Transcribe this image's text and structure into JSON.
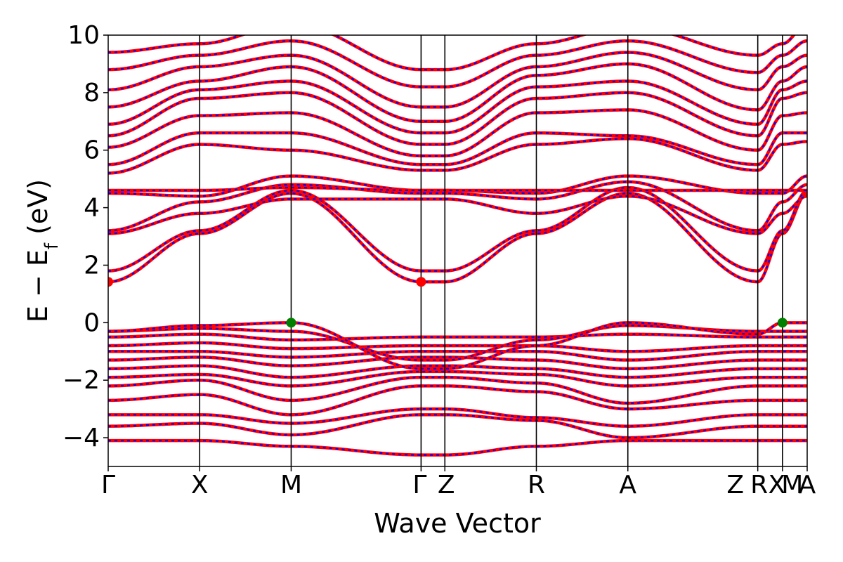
{
  "chart_data": {
    "type": "line",
    "title": "",
    "xlabel": "Wave Vector",
    "ylabel": "E − E_f (eV)",
    "ylabel_parts": {
      "main": "E − E",
      "sub": "f",
      "unit": " (eV)"
    },
    "ylim": [
      -5,
      10
    ],
    "yticks": [
      10,
      8,
      6,
      4,
      2,
      0,
      -2,
      -4
    ],
    "ytick_labels": [
      "10",
      "8",
      "6",
      "4",
      "2",
      "0",
      "−2",
      "−4"
    ],
    "grid": false,
    "x_positions": [
      0,
      1,
      2,
      3.42,
      3.68,
      4.68,
      5.68,
      7.1,
      7.37,
      7.64
    ],
    "kpoints": [
      {
        "label": "Γ",
        "x": 0
      },
      {
        "label": "X",
        "x": 1
      },
      {
        "label": "M",
        "x": 2
      },
      {
        "label": "Γ|Z",
        "x": 3.42
      },
      {
        "label": "Z",
        "x": 3.68
      },
      {
        "label": "R",
        "x": 4.68
      },
      {
        "label": "A",
        "x": 5.68
      },
      {
        "label": "Z|R",
        "x": 7.1
      },
      {
        "label": "X|M",
        "x": 7.37
      },
      {
        "label": "A",
        "x": 7.64
      }
    ],
    "tick_labels_rendered": [
      "Γ",
      "X",
      "M",
      "Γ",
      "Z",
      "R",
      "A",
      "Z",
      "R",
      "X",
      "M",
      "A"
    ],
    "band_colors": {
      "solid": "#ff0000",
      "dashed": "#0000ff"
    },
    "extrema": [
      {
        "name": "CBM",
        "x": 0,
        "y": 1.42,
        "color": "#ff0000"
      },
      {
        "name": "CBM",
        "x": 3.42,
        "y": 1.42,
        "color": "#ff0000"
      },
      {
        "name": "VBM",
        "x": 2,
        "y": 0.0,
        "color": "#008000"
      },
      {
        "name": "VBM",
        "x": 7.37,
        "y": 0.0,
        "color": "#008000"
      }
    ],
    "bands": [
      [
        -4.1,
        -4.1,
        -4.3,
        -4.6,
        -4.6,
        -4.3,
        -4.1,
        -4.1,
        -4.1,
        -4.1
      ],
      [
        -3.6,
        -3.5,
        -3.9,
        -3.2,
        -3.2,
        -3.4,
        -4.0,
        -3.6,
        -3.6,
        -3.6
      ],
      [
        -3.2,
        -3.2,
        -3.5,
        -3.0,
        -3.0,
        -3.3,
        -3.6,
        -3.2,
        -3.2,
        -3.2
      ],
      [
        -2.7,
        -2.5,
        -3.2,
        -2.2,
        -2.2,
        -2.4,
        -3.0,
        -2.7,
        -2.7,
        -2.7
      ],
      [
        -2.2,
        -2.0,
        -2.7,
        -1.9,
        -1.9,
        -2.1,
        -2.8,
        -2.2,
        -2.2,
        -2.2
      ],
      [
        -1.9,
        -1.8,
        -2.2,
        -1.7,
        -1.7,
        -1.8,
        -2.2,
        -1.9,
        -1.9,
        -1.9
      ],
      [
        -1.6,
        -1.5,
        -1.9,
        -1.5,
        -1.5,
        -1.6,
        -1.9,
        -1.6,
        -1.6,
        -1.6
      ],
      [
        -1.3,
        -1.2,
        -1.5,
        -1.2,
        -1.2,
        -1.3,
        -1.6,
        -1.3,
        -1.3,
        -1.3
      ],
      [
        -1.0,
        -1.0,
        -1.2,
        -1.0,
        -1.0,
        -1.0,
        -1.3,
        -1.0,
        -1.0,
        -1.0
      ],
      [
        -0.8,
        -0.7,
        -0.9,
        -0.8,
        -0.8,
        -0.8,
        -1.0,
        -0.8,
        -0.8,
        -0.8
      ],
      [
        -0.5,
        -0.4,
        -0.6,
        -0.5,
        -0.5,
        -0.5,
        -0.4,
        -0.5,
        -0.5,
        -0.5
      ],
      [
        -0.3,
        -0.2,
        -0.3,
        -1.3,
        -1.3,
        -0.6,
        -0.1,
        -0.3,
        -0.3,
        -0.3
      ],
      [
        -0.3,
        -0.1,
        0.0,
        -1.6,
        -1.6,
        -0.8,
        0.0,
        -0.4,
        0.0,
        0.0
      ],
      [
        1.42,
        3.1,
        4.5,
        1.42,
        1.42,
        3.1,
        4.5,
        1.42,
        3.1,
        4.5
      ],
      [
        1.8,
        3.2,
        4.6,
        1.8,
        1.8,
        3.2,
        4.7,
        1.8,
        3.2,
        4.6
      ],
      [
        3.1,
        3.8,
        4.3,
        4.3,
        4.3,
        3.8,
        4.4,
        3.1,
        3.8,
        4.4
      ],
      [
        3.2,
        4.2,
        4.8,
        4.5,
        4.5,
        4.3,
        4.9,
        3.2,
        4.2,
        4.8
      ],
      [
        4.5,
        4.4,
        5.1,
        4.6,
        4.6,
        4.5,
        5.1,
        4.5,
        4.5,
        5.1
      ],
      [
        4.6,
        4.6,
        4.7,
        4.6,
        4.6,
        4.6,
        4.6,
        4.6,
        4.6,
        4.6
      ],
      [
        5.2,
        6.2,
        6.0,
        5.3,
        5.3,
        6.2,
        6.4,
        5.3,
        6.2,
        6.3
      ],
      [
        5.5,
        6.6,
        6.6,
        5.5,
        5.5,
        6.6,
        6.5,
        5.5,
        6.6,
        6.6
      ],
      [
        6.1,
        7.2,
        7.3,
        5.8,
        5.8,
        7.3,
        7.4,
        6.0,
        7.2,
        7.3
      ],
      [
        6.5,
        7.8,
        8.0,
        6.2,
        6.2,
        7.8,
        8.0,
        6.5,
        7.8,
        8.0
      ],
      [
        6.9,
        8.1,
        8.4,
        6.6,
        6.6,
        8.2,
        8.4,
        6.9,
        8.1,
        8.4
      ],
      [
        7.5,
        8.4,
        8.9,
        7.0,
        7.0,
        8.6,
        9.0,
        7.4,
        8.4,
        8.9
      ],
      [
        8.1,
        8.9,
        9.3,
        7.5,
        7.5,
        8.9,
        9.4,
        8.1,
        8.9,
        9.3
      ],
      [
        8.8,
        9.3,
        9.8,
        8.2,
        8.2,
        9.3,
        9.8,
        8.7,
        9.3,
        9.8
      ],
      [
        9.4,
        9.7,
        10.4,
        8.8,
        8.8,
        9.7,
        10.3,
        9.3,
        9.7,
        10.4
      ]
    ]
  }
}
